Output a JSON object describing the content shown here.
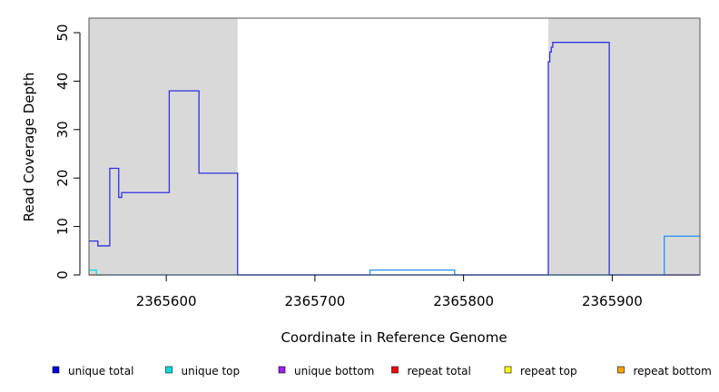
{
  "chart_data": {
    "type": "line",
    "xlabel": "Coordinate in Reference Genome",
    "ylabel": "Read Coverage Depth",
    "xlim": [
      2365548,
      2365959
    ],
    "ylim": [
      0,
      53
    ],
    "x_ticks": [
      2365600,
      2365700,
      2365800,
      2365900
    ],
    "x_tick_labels": [
      "2365600",
      "2365700",
      "2365800",
      "2365900"
    ],
    "y_ticks": [
      0,
      10,
      20,
      30,
      40,
      50
    ],
    "y_tick_labels": [
      "0",
      "10",
      "20",
      "30",
      "40",
      "50"
    ],
    "grid": false,
    "legend_position": "bottom",
    "shaded_regions": [
      {
        "x": [
          2365548,
          2365648
        ],
        "color": "#d9d9d9"
      },
      {
        "x": [
          2365857,
          2365959
        ],
        "color": "#d9d9d9"
      }
    ],
    "series": [
      {
        "name": "unique total",
        "color": "#3030e0",
        "points": [
          [
            2365548,
            7
          ],
          [
            2365554,
            7
          ],
          [
            2365554,
            6
          ],
          [
            2365562,
            6
          ],
          [
            2365562,
            22
          ],
          [
            2365568,
            22
          ],
          [
            2365568,
            16
          ],
          [
            2365570,
            16
          ],
          [
            2365570,
            17
          ],
          [
            2365602,
            17
          ],
          [
            2365602,
            38
          ],
          [
            2365622,
            38
          ],
          [
            2365622,
            21
          ],
          [
            2365648,
            21
          ],
          [
            2365648,
            0
          ],
          [
            2365857,
            0
          ],
          [
            2365857,
            44
          ],
          [
            2365858,
            44
          ],
          [
            2365858,
            46
          ],
          [
            2365859,
            46
          ],
          [
            2365859,
            47
          ],
          [
            2365860,
            47
          ],
          [
            2365860,
            48
          ],
          [
            2365898,
            48
          ],
          [
            2365898,
            0
          ],
          [
            2365959,
            0
          ]
        ]
      },
      {
        "name": "unique top",
        "color": "#00e0e0",
        "points": [
          [
            2365548,
            1
          ],
          [
            2365553,
            1
          ],
          [
            2365553,
            0
          ],
          [
            2365959,
            0
          ]
        ]
      },
      {
        "name": "unique bottom",
        "color": "#a020f0",
        "points": [
          [
            2365548,
            0
          ],
          [
            2365959,
            0
          ]
        ]
      },
      {
        "name": "repeat total",
        "color": "#ff0000",
        "points": [
          [
            2365935,
            0
          ],
          [
            2365959,
            0
          ]
        ]
      },
      {
        "name": "repeat top",
        "color": "#ffff00",
        "points": [
          [
            2365548,
            0
          ],
          [
            2365558,
            0
          ]
        ]
      },
      {
        "name": "repeat bottom",
        "color": "#ffa500",
        "points": [
          [
            2365548,
            0
          ],
          [
            2365556,
            0
          ]
        ]
      },
      {
        "color": "#1e90ff",
        "points": [
          [
            2365648,
            0
          ],
          [
            2365737,
            0
          ],
          [
            2365737,
            1
          ],
          [
            2365794,
            1
          ],
          [
            2365794,
            0
          ],
          [
            2365935,
            0
          ],
          [
            2365935,
            8
          ],
          [
            2365959,
            8
          ]
        ]
      }
    ],
    "legend": [
      {
        "label": "unique total",
        "color": "#0000e0"
      },
      {
        "label": "unique top",
        "color": "#00e0e0"
      },
      {
        "label": "unique bottom",
        "color": "#a020f0"
      },
      {
        "label": "repeat total",
        "color": "#ff0000"
      },
      {
        "label": "repeat top",
        "color": "#ffff00"
      },
      {
        "label": "repeat bottom",
        "color": "#ffa500"
      }
    ]
  }
}
